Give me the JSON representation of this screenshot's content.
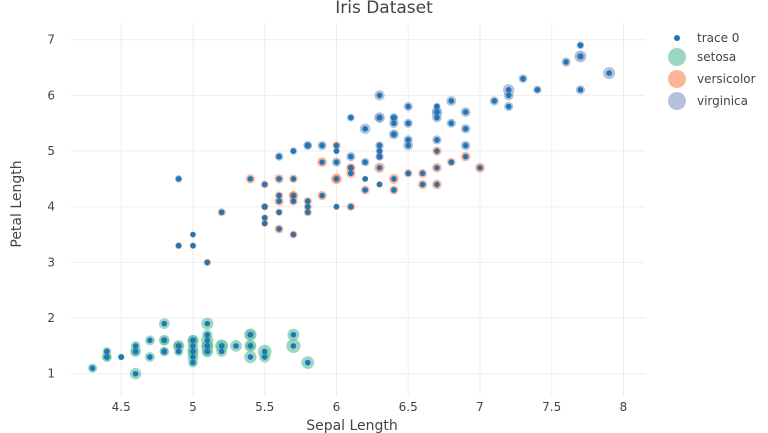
{
  "chart_data": {
    "type": "scatter",
    "title": "Iris Dataset",
    "xlabel": "Sepal Length",
    "ylabel": "Petal Length",
    "xlim": [
      4.15,
      8.15
    ],
    "ylim": [
      0.6,
      7.3
    ],
    "x_ticks": [
      4.5,
      5,
      5.5,
      6,
      6.5,
      7,
      7.5,
      8
    ],
    "x_tick_labels": [
      "4.5",
      "5",
      "5.5",
      "6",
      "6.5",
      "7",
      "7.5",
      "8"
    ],
    "y_ticks": [
      1,
      2,
      3,
      4,
      5,
      6,
      7
    ],
    "y_tick_labels": [
      "1",
      "2",
      "3",
      "4",
      "5",
      "6",
      "7"
    ],
    "legend_position": "top-right",
    "series": [
      {
        "name": "trace 0",
        "color": "#1f77b4",
        "x": [
          5.1,
          4.9,
          4.7,
          4.6,
          5.0,
          5.4,
          4.6,
          5.0,
          4.4,
          4.9,
          5.4,
          4.8,
          4.8,
          4.3,
          5.8,
          5.7,
          5.4,
          5.1,
          5.7,
          5.1,
          5.4,
          5.1,
          4.6,
          5.1,
          4.8,
          5.0,
          5.0,
          5.2,
          5.2,
          4.7,
          4.8,
          5.4,
          5.2,
          5.5,
          4.9,
          5.0,
          5.5,
          4.9,
          4.4,
          5.1,
          5.0,
          4.5,
          4.4,
          5.0,
          5.1,
          4.8,
          5.1,
          4.6,
          5.3,
          5.0,
          7.0,
          6.4,
          6.9,
          5.5,
          6.5,
          5.7,
          6.3,
          4.9,
          6.6,
          5.2,
          5.0,
          5.9,
          6.0,
          6.1,
          5.6,
          6.7,
          5.6,
          5.8,
          6.2,
          5.6,
          5.9,
          6.1,
          6.3,
          6.1,
          6.4,
          6.6,
          6.8,
          6.7,
          6.0,
          5.7,
          5.5,
          5.5,
          5.8,
          6.0,
          5.4,
          6.0,
          6.7,
          6.3,
          5.6,
          5.5,
          5.5,
          6.1,
          5.8,
          5.0,
          5.6,
          5.7,
          5.7,
          6.2,
          5.1,
          5.7,
          6.3,
          5.8,
          7.1,
          6.3,
          6.5,
          7.6,
          4.9,
          7.3,
          6.7,
          7.2,
          6.5,
          6.4,
          6.8,
          5.7,
          5.8,
          6.4,
          6.5,
          7.7,
          7.7,
          6.0,
          6.9,
          5.6,
          7.7,
          6.3,
          6.7,
          7.2,
          6.2,
          6.1,
          6.4,
          7.2,
          7.4,
          7.9,
          6.4,
          6.3,
          6.1,
          7.7,
          6.3,
          6.4,
          6.0,
          6.9,
          6.7,
          6.9,
          5.8,
          6.8,
          6.7,
          6.7,
          6.3,
          6.5,
          6.2,
          5.9
        ],
        "y": [
          1.4,
          1.4,
          1.3,
          1.5,
          1.4,
          1.7,
          1.4,
          1.5,
          1.4,
          1.5,
          1.5,
          1.6,
          1.4,
          1.1,
          1.2,
          1.5,
          1.3,
          1.4,
          1.7,
          1.5,
          1.7,
          1.5,
          1.0,
          1.7,
          1.9,
          1.6,
          1.6,
          1.5,
          1.4,
          1.6,
          1.6,
          1.5,
          1.5,
          1.4,
          1.5,
          1.2,
          1.3,
          1.5,
          1.3,
          1.5,
          1.3,
          1.3,
          1.3,
          1.6,
          1.9,
          1.4,
          1.6,
          1.4,
          1.5,
          1.4,
          4.7,
          4.5,
          4.9,
          4.0,
          4.6,
          4.5,
          4.7,
          3.3,
          4.6,
          3.9,
          3.5,
          4.2,
          4.0,
          4.7,
          3.6,
          4.4,
          4.5,
          4.1,
          4.5,
          3.9,
          4.8,
          4.0,
          4.9,
          4.7,
          4.3,
          4.4,
          4.8,
          5.0,
          4.5,
          3.5,
          3.8,
          3.7,
          3.9,
          5.1,
          4.5,
          4.5,
          4.7,
          4.4,
          4.1,
          4.0,
          4.4,
          4.6,
          4.0,
          3.3,
          4.2,
          4.2,
          4.2,
          4.3,
          3.0,
          4.1,
          6.0,
          5.1,
          5.9,
          5.6,
          5.8,
          6.6,
          4.5,
          6.3,
          5.8,
          6.1,
          5.1,
          5.3,
          5.5,
          5.0,
          5.1,
          5.3,
          5.5,
          6.7,
          6.9,
          5.0,
          5.7,
          4.9,
          6.7,
          4.9,
          5.7,
          6.0,
          4.8,
          4.9,
          5.6,
          5.8,
          6.1,
          6.4,
          5.6,
          5.1,
          5.6,
          6.1,
          5.6,
          5.5,
          4.8,
          5.4,
          5.6,
          5.1,
          5.1,
          5.9,
          5.7,
          5.2,
          5.0,
          5.2,
          5.4,
          5.1
        ]
      },
      {
        "name": "setosa",
        "color": "#66c2a5",
        "x": [
          5.1,
          4.9,
          4.7,
          4.6,
          5.0,
          5.4,
          4.6,
          5.0,
          4.4,
          4.9,
          5.4,
          4.8,
          4.8,
          4.3,
          5.8,
          5.7,
          5.4,
          5.1,
          5.7,
          5.1,
          5.4,
          5.1,
          4.6,
          5.1,
          4.8,
          5.0,
          5.0,
          5.2,
          5.2,
          4.7,
          4.8,
          5.4,
          5.2,
          5.5,
          4.9,
          5.0,
          5.5,
          4.9,
          4.4,
          5.1,
          5.0,
          4.5,
          4.4,
          5.0,
          5.1,
          4.8,
          5.1,
          4.6,
          5.3,
          5.0
        ],
        "y": [
          1.4,
          1.4,
          1.3,
          1.5,
          1.4,
          1.7,
          1.4,
          1.5,
          1.4,
          1.5,
          1.5,
          1.6,
          1.4,
          1.1,
          1.2,
          1.5,
          1.3,
          1.4,
          1.7,
          1.5,
          1.7,
          1.5,
          1.0,
          1.7,
          1.9,
          1.6,
          1.6,
          1.5,
          1.4,
          1.6,
          1.6,
          1.5,
          1.5,
          1.4,
          1.5,
          1.2,
          1.3,
          1.5,
          1.3,
          1.5,
          1.3,
          1.3,
          1.3,
          1.6,
          1.9,
          1.4,
          1.6,
          1.4,
          1.5,
          1.4
        ],
        "size": [
          3.5,
          3.0,
          3.2,
          3.1,
          3.6,
          3.9,
          3.4,
          3.4,
          2.9,
          3.1,
          3.7,
          3.4,
          3.0,
          3.0,
          4.0,
          4.4,
          3.9,
          3.5,
          3.8,
          3.8,
          3.4,
          3.7,
          3.6,
          3.3,
          3.4,
          3.0,
          3.4,
          3.5,
          3.4,
          3.2,
          3.1,
          3.4,
          4.1,
          4.2,
          3.1,
          3.2,
          3.5,
          3.6,
          3.0,
          3.4,
          3.5,
          2.3,
          3.2,
          3.5,
          3.8,
          3.0,
          3.8,
          3.2,
          3.7,
          3.3
        ]
      },
      {
        "name": "versicolor",
        "color": "#fc8d62",
        "x": [
          7.0,
          6.4,
          6.9,
          5.5,
          6.5,
          5.7,
          6.3,
          4.9,
          6.6,
          5.2,
          5.0,
          5.9,
          6.0,
          6.1,
          5.6,
          6.7,
          5.6,
          5.8,
          6.2,
          5.6,
          5.9,
          6.1,
          6.3,
          6.1,
          6.4,
          6.6,
          6.8,
          6.7,
          6.0,
          5.7,
          5.5,
          5.5,
          5.8,
          6.0,
          5.4,
          6.0,
          6.7,
          6.3,
          5.6,
          5.5,
          5.5,
          6.1,
          5.8,
          5.0,
          5.6,
          5.7,
          5.7,
          6.2,
          5.1,
          5.7
        ],
        "y": [
          4.7,
          4.5,
          4.9,
          4.0,
          4.6,
          4.5,
          4.7,
          3.3,
          4.6,
          3.9,
          3.5,
          4.2,
          4.0,
          4.7,
          3.6,
          4.4,
          4.5,
          4.1,
          4.5,
          3.9,
          4.8,
          4.0,
          4.9,
          4.7,
          4.3,
          4.4,
          4.8,
          5.0,
          4.5,
          3.5,
          3.8,
          3.7,
          3.9,
          5.1,
          4.5,
          4.5,
          4.7,
          4.4,
          4.1,
          4.0,
          4.4,
          4.6,
          4.0,
          3.3,
          4.2,
          4.2,
          4.2,
          4.3,
          3.0,
          4.1
        ],
        "size": [
          3.2,
          3.2,
          3.1,
          2.3,
          2.8,
          2.8,
          3.3,
          2.4,
          2.9,
          2.7,
          2.0,
          3.0,
          2.2,
          2.9,
          2.9,
          3.1,
          3.0,
          2.7,
          2.2,
          2.5,
          3.2,
          2.8,
          2.5,
          2.8,
          2.9,
          3.0,
          2.8,
          3.0,
          2.9,
          2.6,
          2.4,
          2.4,
          2.7,
          2.7,
          3.0,
          3.4,
          3.1,
          2.3,
          3.0,
          2.5,
          2.6,
          3.0,
          2.6,
          2.3,
          2.7,
          3.0,
          2.9,
          2.9,
          2.5,
          2.8
        ]
      },
      {
        "name": "virginica",
        "color": "#8da0cb",
        "x": [
          6.3,
          5.8,
          7.1,
          6.3,
          6.5,
          7.6,
          4.9,
          7.3,
          6.7,
          7.2,
          6.5,
          6.4,
          6.8,
          5.7,
          5.8,
          6.4,
          6.5,
          7.7,
          7.7,
          6.0,
          6.9,
          5.6,
          7.7,
          6.3,
          6.7,
          7.2,
          6.2,
          6.1,
          6.4,
          7.2,
          7.4,
          7.9,
          6.4,
          6.3,
          6.1,
          7.7,
          6.3,
          6.4,
          6.0,
          6.9,
          6.7,
          6.9,
          5.8,
          6.8,
          6.7,
          6.7,
          6.3,
          6.5,
          6.2,
          5.9
        ],
        "y": [
          6.0,
          5.1,
          5.9,
          5.6,
          5.8,
          6.6,
          4.5,
          6.3,
          5.8,
          6.1,
          5.1,
          5.3,
          5.5,
          5.0,
          5.1,
          5.3,
          5.5,
          6.7,
          6.9,
          5.0,
          5.7,
          4.9,
          6.7,
          4.9,
          5.7,
          6.0,
          4.8,
          4.9,
          5.6,
          5.8,
          6.1,
          6.4,
          5.6,
          5.1,
          5.6,
          6.1,
          5.6,
          5.5,
          4.8,
          5.4,
          5.6,
          5.1,
          5.1,
          5.9,
          5.7,
          5.2,
          5.0,
          5.2,
          5.4,
          5.1
        ],
        "size": [
          3.3,
          2.7,
          3.0,
          2.9,
          3.0,
          3.0,
          2.5,
          2.9,
          2.5,
          3.6,
          3.2,
          2.7,
          3.0,
          2.5,
          2.8,
          3.2,
          3.0,
          3.8,
          2.6,
          2.2,
          3.2,
          2.8,
          2.8,
          2.7,
          3.3,
          3.2,
          2.8,
          3.0,
          2.8,
          3.0,
          2.8,
          3.8,
          2.8,
          2.8,
          2.6,
          3.0,
          3.4,
          3.1,
          3.0,
          3.1,
          3.1,
          3.1,
          2.7,
          3.2,
          3.3,
          3.0,
          2.5,
          3.0,
          3.4,
          3.0
        ]
      }
    ]
  }
}
